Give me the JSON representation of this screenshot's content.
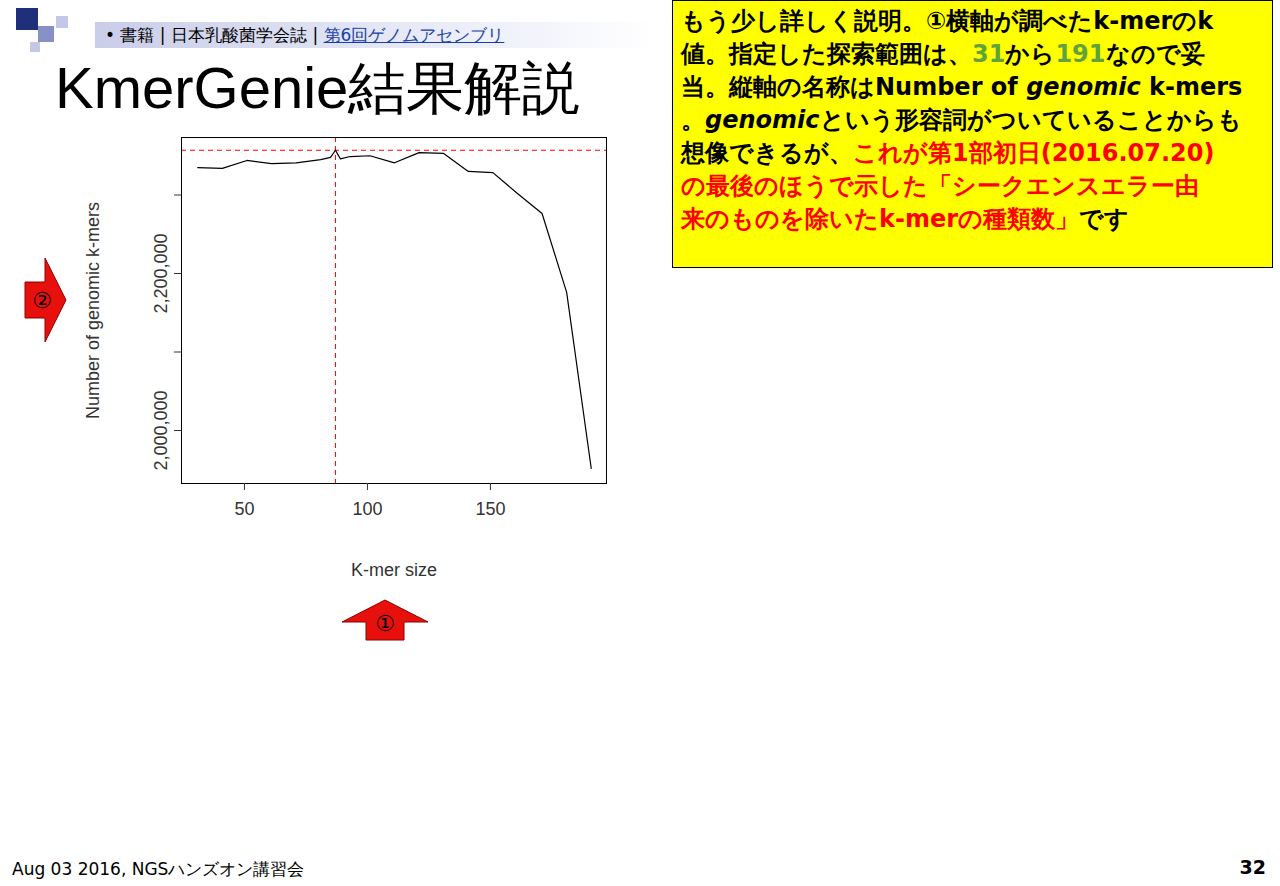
{
  "chart_data": {
    "type": "line",
    "x": [
      31,
      41,
      51,
      61,
      71,
      81,
      85,
      87,
      89,
      93,
      101,
      111,
      121,
      131,
      141,
      151,
      161,
      171,
      181,
      191
    ],
    "values": [
      2335000,
      2334000,
      2344000,
      2340000,
      2341000,
      2345000,
      2348000,
      2357000,
      2346000,
      2349000,
      2350000,
      2341000,
      2354000,
      2353000,
      2330000,
      2328500,
      2302000,
      2276500,
      2176000,
      1951600
    ],
    "color": "#000000",
    "xlabel": "K-mer size",
    "ylabel": "Number of genomic k-mers",
    "xlim": [
      24.4,
      197.2
    ],
    "xticks": [
      50,
      100,
      150
    ],
    "ylim": [
      1932500,
      2373250
    ],
    "yticks": [
      2000000,
      2200000
    ],
    "yticks_minor": [
      2100000,
      2300000
    ],
    "reference_lines": [
      {
        "axis": "x",
        "value": 87,
        "color": "#ff0000",
        "line_style": "dashed"
      },
      {
        "axis": "y",
        "value": 2357000,
        "color": "#ff0000",
        "line_style": "dashed"
      }
    ],
    "grid": false
  },
  "slide": {
    "header": {
      "bullet": "•",
      "separator": "|",
      "items": [
        "書籍",
        "日本乳酸菌学会誌",
        "第6回ゲノムアセンブリ"
      ],
      "link_item": 2
    },
    "title": "KmerGenie結果解説",
    "note": {
      "lines": [
        [
          {
            "text": "もう少し詳しく説明。①横軸が調べたk-merのk"
          }
        ],
        [
          {
            "text": "値。指定した探索範囲は、"
          },
          {
            "text": "31",
            "color": "#5fa33a"
          },
          {
            "text": "から"
          },
          {
            "text": "191",
            "color": "#5fa33a"
          },
          {
            "text": "なので妥"
          }
        ],
        [
          {
            "text": "当。縦軸の名称はNumber of "
          },
          {
            "text": "genomic",
            "italic": true
          },
          {
            "text": " k-mers"
          }
        ],
        [
          {
            "text": "。"
          },
          {
            "text": "genomic",
            "italic": true
          },
          {
            "text": "という形容詞がついていることからも"
          }
        ],
        [
          {
            "text": "想像できるが、"
          },
          {
            "text": "これが第1部初日(2016.07.20)",
            "color": "#ff0000"
          }
        ],
        [
          {
            "text": "の最後のほうで示した「シークエンスエラー由",
            "color": "#ff0000"
          }
        ],
        [
          {
            "text": "来のものを除いたk-merの種類数」",
            "color": "#ff0000"
          },
          {
            "text": "です"
          }
        ]
      ]
    },
    "markers": {
      "x_axis": "①",
      "y_axis": "②"
    },
    "footer": "Aug 03 2016, NGSハンズオン講習会",
    "page": 32
  }
}
